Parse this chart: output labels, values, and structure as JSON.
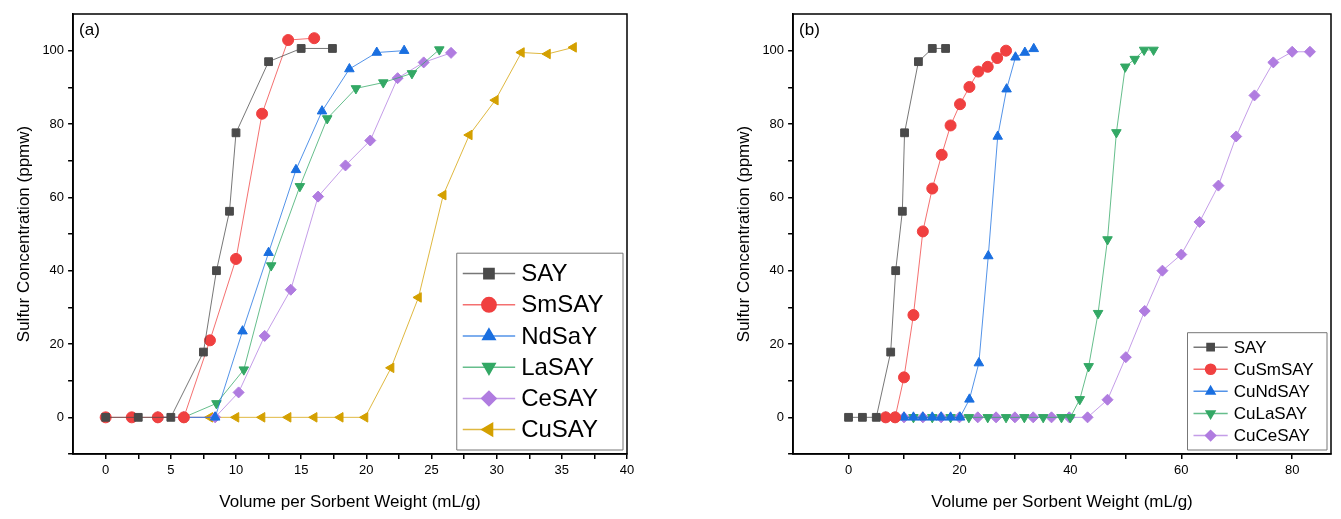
{
  "chart_data": [
    {
      "type": "line",
      "xlabel": "Volume per Sorbent Weight (mL/g)",
      "ylabel": "Sulfur Concentration (ppmw)",
      "annotations": [
        "(a)"
      ],
      "legend": "bottom right",
      "xlim": [
        -2.5,
        40
      ],
      "xticks": [
        0,
        {
          "value": 2.5,
          "label": null
        },
        5,
        {
          "value": 7.5,
          "label": null
        },
        10,
        {
          "value": 12.5,
          "label": null
        },
        15,
        {
          "value": 17.5,
          "label": null
        },
        20,
        {
          "value": 22.5,
          "label": null
        },
        25,
        {
          "value": 27.5,
          "label": null
        },
        30,
        {
          "value": 32.5,
          "label": null
        },
        35,
        {
          "value": 37.5,
          "label": null
        },
        40
      ],
      "ylim": [
        -10,
        110
      ],
      "yticks": [
        {
          "value": -10,
          "label": null
        },
        0,
        {
          "value": 10,
          "label": null
        },
        20,
        {
          "value": 30,
          "label": null
        },
        40,
        {
          "value": 50,
          "label": null
        },
        60,
        {
          "value": 70,
          "label": null
        },
        80,
        {
          "value": 90,
          "label": null
        },
        100
      ],
      "series": [
        {
          "name": "SAY",
          "color": "#4a4a4a",
          "marker": "square",
          "x": [
            0,
            2.5,
            5,
            7.5,
            8.5,
            9.5,
            10,
            12.5,
            15,
            17.4
          ],
          "values": [
            0,
            0,
            0,
            17.8,
            40,
            56.2,
            77.6,
            97,
            100.6,
            100.6
          ]
        },
        {
          "name": "SmSAY",
          "color": "#f04040",
          "marker": "circle",
          "x": [
            0,
            2,
            4,
            6,
            8,
            10,
            12,
            14,
            16
          ],
          "values": [
            0,
            0,
            0,
            0,
            21,
            43.2,
            82.8,
            102.9,
            103.4
          ]
        },
        {
          "name": "NdSaY",
          "color": "#1a6fe0",
          "marker": "triangle",
          "x": [
            4,
            6,
            8.4,
            10.5,
            12.5,
            14.6,
            16.6,
            18.7,
            20.8,
            22.9
          ],
          "values": [
            0,
            0,
            0,
            23.5,
            44.9,
            67.5,
            83.5,
            95,
            99.5,
            100
          ]
        },
        {
          "name": "LaSAY",
          "color": "#33a865",
          "marker": "triangle-down",
          "x": [
            4,
            6,
            8.5,
            10.6,
            12.7,
            14.9,
            17,
            19.2,
            21.3,
            23.5,
            25.6
          ],
          "values": [
            0,
            0,
            3.8,
            13,
            41.4,
            63,
            81.5,
            89.7,
            91.3,
            93.8,
            100.3
          ]
        },
        {
          "name": "CeSAY",
          "color": "#b07ce0",
          "marker": "diamond",
          "x": [
            4,
            6,
            8.4,
            10.2,
            12.2,
            14.2,
            16.3,
            18.4,
            20.3,
            22.4,
            24.4,
            26.5
          ],
          "values": [
            0,
            0,
            0,
            6.8,
            22.2,
            34.8,
            60.2,
            68.7,
            75.5,
            92.5,
            96.8,
            99.4
          ]
        },
        {
          "name": "CuSAY",
          "color": "#d4a000",
          "marker": "triangle-left",
          "x": [
            6,
            8,
            10,
            12,
            14,
            16,
            18,
            19.9,
            21.9,
            24,
            25.9,
            27.9,
            29.9,
            31.9,
            33.9,
            35.9
          ],
          "values": [
            0,
            0,
            0,
            0,
            0,
            0,
            0,
            0,
            13.5,
            32.7,
            60.6,
            77,
            86.5,
            99.5,
            99.1,
            100.9
          ]
        }
      ]
    },
    {
      "type": "line",
      "xlabel": "Volume per Sorbent Weight (mL/g)",
      "ylabel": "Sulfur Concentration (ppmw)",
      "annotations": [
        "(b)"
      ],
      "legend": "bottom right",
      "xlim": [
        -10,
        87
      ],
      "xticks": [
        0,
        {
          "value": 10,
          "label": null
        },
        20,
        {
          "value": 30,
          "label": null
        },
        40,
        {
          "value": 50,
          "label": null
        },
        60,
        {
          "value": 70,
          "label": null
        },
        80
      ],
      "ylim": [
        -10,
        110
      ],
      "yticks": [
        {
          "value": -10,
          "label": null
        },
        0,
        {
          "value": 10,
          "label": null
        },
        20,
        {
          "value": 30,
          "label": null
        },
        40,
        {
          "value": 50,
          "label": null
        },
        60,
        {
          "value": 70,
          "label": null
        },
        80,
        {
          "value": 90,
          "label": null
        },
        100
      ],
      "series": [
        {
          "name": "SAY",
          "color": "#4a4a4a",
          "marker": "square",
          "x": [
            0,
            2.5,
            5,
            7.6,
            8.5,
            9.7,
            10.1,
            12.6,
            15.1,
            17.5
          ],
          "values": [
            0,
            0,
            0,
            17.8,
            40,
            56.2,
            77.6,
            97,
            100.6,
            100.6
          ]
        },
        {
          "name": "CuSmSAY",
          "color": "#f04040",
          "marker": "circle",
          "x": [
            6.7,
            8.4,
            10,
            11.7,
            13.4,
            15.1,
            16.8,
            18.4,
            20.1,
            21.8,
            23.4,
            25.1,
            26.8,
            28.4
          ],
          "values": [
            0,
            0,
            10.9,
            27.9,
            50.7,
            62.4,
            71.6,
            79.6,
            85.4,
            90.1,
            94.3,
            95.6,
            98,
            100
          ]
        },
        {
          "name": "CuNdSAY",
          "color": "#1a6fe0",
          "marker": "triangle",
          "x": [
            6.7,
            8.4,
            10,
            11.7,
            13.4,
            15.1,
            16.7,
            18.4,
            20.1,
            21.8,
            23.5,
            25.2,
            26.9,
            28.5,
            30.1,
            31.8,
            33.4
          ],
          "values": [
            0,
            0,
            0,
            0,
            0,
            0,
            0,
            0,
            0,
            4.9,
            14.8,
            44,
            76.6,
            89.5,
            98.2,
            99.5,
            100.5
          ]
        },
        {
          "name": "CuLaSAY",
          "color": "#33a865",
          "marker": "triangle-down",
          "x": [
            8.4,
            11.7,
            15.1,
            18.4,
            21.7,
            25.1,
            28.4,
            31.7,
            35.1,
            38.4,
            40,
            41.7,
            43.3,
            45,
            46.7,
            48.3,
            49.9,
            51.6,
            53.3,
            55
          ],
          "values": [
            0,
            0,
            0,
            0,
            0,
            0,
            0,
            0,
            0,
            0,
            0,
            4.9,
            13.9,
            28.4,
            48.5,
            77.7,
            95.6,
            97.7,
            100.2,
            100.2
          ]
        },
        {
          "name": "CuCeSAY",
          "color": "#b07ce0",
          "marker": "diamond",
          "x": [
            6.7,
            10,
            13.4,
            16.7,
            20,
            23.3,
            26.6,
            30,
            33.3,
            36.6,
            39.8,
            43.1,
            46.7,
            50,
            53.4,
            56.6,
            60,
            63.3,
            66.7,
            69.9,
            73.2,
            76.6,
            80,
            83.2
          ],
          "values": [
            0,
            0,
            0,
            0,
            0,
            0,
            0,
            0,
            0,
            0,
            0,
            0,
            4.8,
            16.4,
            29,
            40,
            44.4,
            53.3,
            63.2,
            76.6,
            87.8,
            96.8,
            99.7,
            99.7
          ]
        }
      ]
    }
  ]
}
